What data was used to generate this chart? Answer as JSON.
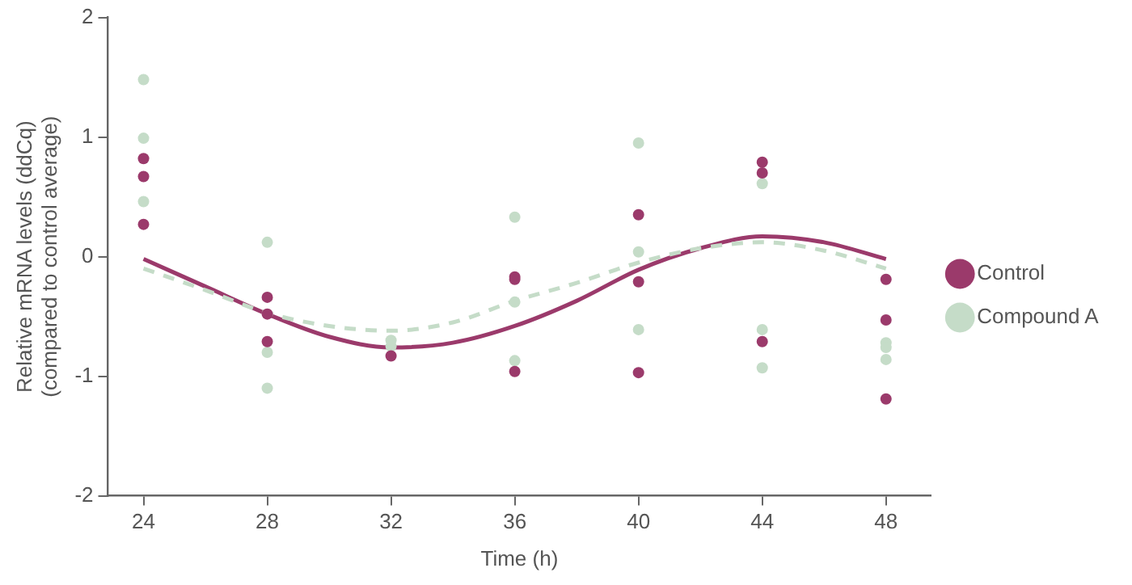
{
  "chart_data": {
    "type": "scatter",
    "xlabel": "Time (h)",
    "ylabel": "Relative mRNA levels (ddCq)\n(compared to control average)",
    "xlim": [
      22.85,
      49.45
    ],
    "xticks": [
      24,
      28,
      32,
      36,
      40,
      44,
      48
    ],
    "ylim": [
      -2,
      2
    ],
    "yticks": [
      -2,
      -1,
      0,
      1,
      2
    ],
    "grid": false,
    "legend": "right",
    "marker": "circle",
    "series": [
      {
        "name": "Control",
        "type": "scatter",
        "color": "#9b3a6b",
        "x": [
          24,
          24,
          24,
          28,
          28,
          28,
          32,
          36,
          36,
          36,
          40,
          40,
          40,
          44,
          44,
          44,
          48,
          48,
          48
        ],
        "values": [
          0.82,
          0.67,
          0.27,
          -0.34,
          -0.48,
          -0.71,
          -0.83,
          -0.17,
          -0.19,
          -0.96,
          0.35,
          -0.21,
          -0.97,
          0.79,
          0.7,
          -0.71,
          -0.19,
          -0.53,
          -1.19
        ]
      },
      {
        "name": "Compound A",
        "type": "scatter",
        "color": "#c5dcc8",
        "x": [
          24,
          24,
          24,
          28,
          28,
          28,
          32,
          32,
          36,
          36,
          36,
          40,
          40,
          40,
          44,
          44,
          44,
          48,
          48,
          48
        ],
        "values": [
          1.48,
          0.99,
          0.46,
          0.12,
          -0.8,
          -1.1,
          -0.7,
          -0.75,
          0.33,
          -0.38,
          -0.87,
          0.95,
          0.04,
          -0.61,
          0.61,
          -0.61,
          -0.93,
          -0.72,
          -0.76,
          -0.86
        ]
      },
      {
        "type": "line",
        "color": "#c5dcc8",
        "line_style": "dashed",
        "marker": "none",
        "x": [
          24,
          26,
          28,
          30,
          32,
          34,
          36,
          38,
          40,
          42,
          44,
          46,
          48
        ],
        "values": [
          -0.1,
          -0.28,
          -0.47,
          -0.58,
          -0.62,
          -0.55,
          -0.37,
          -0.22,
          -0.05,
          0.07,
          0.12,
          0.05,
          -0.1
        ]
      },
      {
        "type": "line",
        "color": "#9b3a6b",
        "line_style": "solid",
        "marker": "none",
        "x": [
          24,
          26,
          28,
          30,
          32,
          34,
          36,
          38,
          40,
          42,
          44,
          46,
          48
        ],
        "values": [
          -0.02,
          -0.25,
          -0.48,
          -0.67,
          -0.76,
          -0.72,
          -0.58,
          -0.37,
          -0.11,
          0.07,
          0.17,
          0.12,
          -0.02
        ]
      }
    ]
  }
}
